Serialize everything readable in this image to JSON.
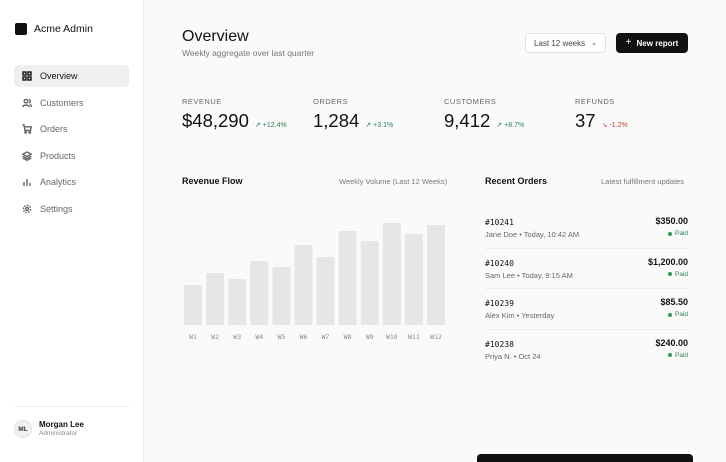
{
  "brand": {
    "name": "Acme Admin"
  },
  "nav": {
    "items": [
      {
        "label": "Overview",
        "icon": "grid-icon",
        "active": true
      },
      {
        "label": "Customers",
        "icon": "users-icon"
      },
      {
        "label": "Orders",
        "icon": "cart-icon"
      },
      {
        "label": "Products",
        "icon": "layers-icon"
      },
      {
        "label": "Analytics",
        "icon": "bar-chart-icon"
      },
      {
        "label": "Settings",
        "icon": "gear-icon"
      }
    ]
  },
  "user": {
    "initials": "ML",
    "name": "Morgan Lee",
    "role": "Administrator"
  },
  "header": {
    "title": "Overview",
    "subtitle": "Weekly aggregate over last quarter",
    "range_selected": "Last 12 weeks",
    "new_report_label": "New report"
  },
  "stats": [
    {
      "label": "Revenue",
      "value": "$48,290",
      "change": "+12.4%",
      "direction": "up"
    },
    {
      "label": "Orders",
      "value": "1,284",
      "change": "+3.1%",
      "direction": "up"
    },
    {
      "label": "Customers",
      "value": "9,412",
      "change": "+8.7%",
      "direction": "up"
    },
    {
      "label": "Refunds",
      "value": "37",
      "change": "-1.2%",
      "direction": "down"
    }
  ],
  "revenue_flow": {
    "title": "Revenue Flow",
    "subtitle": "Weekly Volume (Last 12 Weeks)"
  },
  "chart_data": {
    "type": "bar",
    "title": "Revenue Flow",
    "subtitle": "Weekly Volume (Last 12 Weeks)",
    "categories": [
      "W1",
      "W2",
      "W3",
      "W4",
      "W5",
      "W6",
      "W7",
      "W8",
      "W9",
      "W10",
      "W11",
      "W12"
    ],
    "values": [
      40,
      52,
      46,
      64,
      58,
      80,
      68,
      94,
      84,
      102,
      91,
      100
    ],
    "ylim": [
      0,
      110
    ],
    "grid": false,
    "bar_color": "#e6e6e6"
  },
  "recent_orders": {
    "title": "Recent Orders",
    "subtitle": "Latest fulfillment updates",
    "items": [
      {
        "id": "#10241",
        "meta": "Jane Doe • Today, 10:42 AM",
        "amount": "$350.00",
        "status": "Paid"
      },
      {
        "id": "#10240",
        "meta": "Sam Lee • Today, 9:15 AM",
        "amount": "$1,200.00",
        "status": "Paid"
      },
      {
        "id": "#10239",
        "meta": "Alex Kim • Yesterday",
        "amount": "$85.50",
        "status": "Paid"
      },
      {
        "id": "#10238",
        "meta": "Priya N. • Oct 24",
        "amount": "$240.00",
        "status": "Paid"
      }
    ]
  },
  "colors": {
    "accent": "#111111",
    "positive": "#2e7d4f",
    "negative": "#c0392b"
  }
}
